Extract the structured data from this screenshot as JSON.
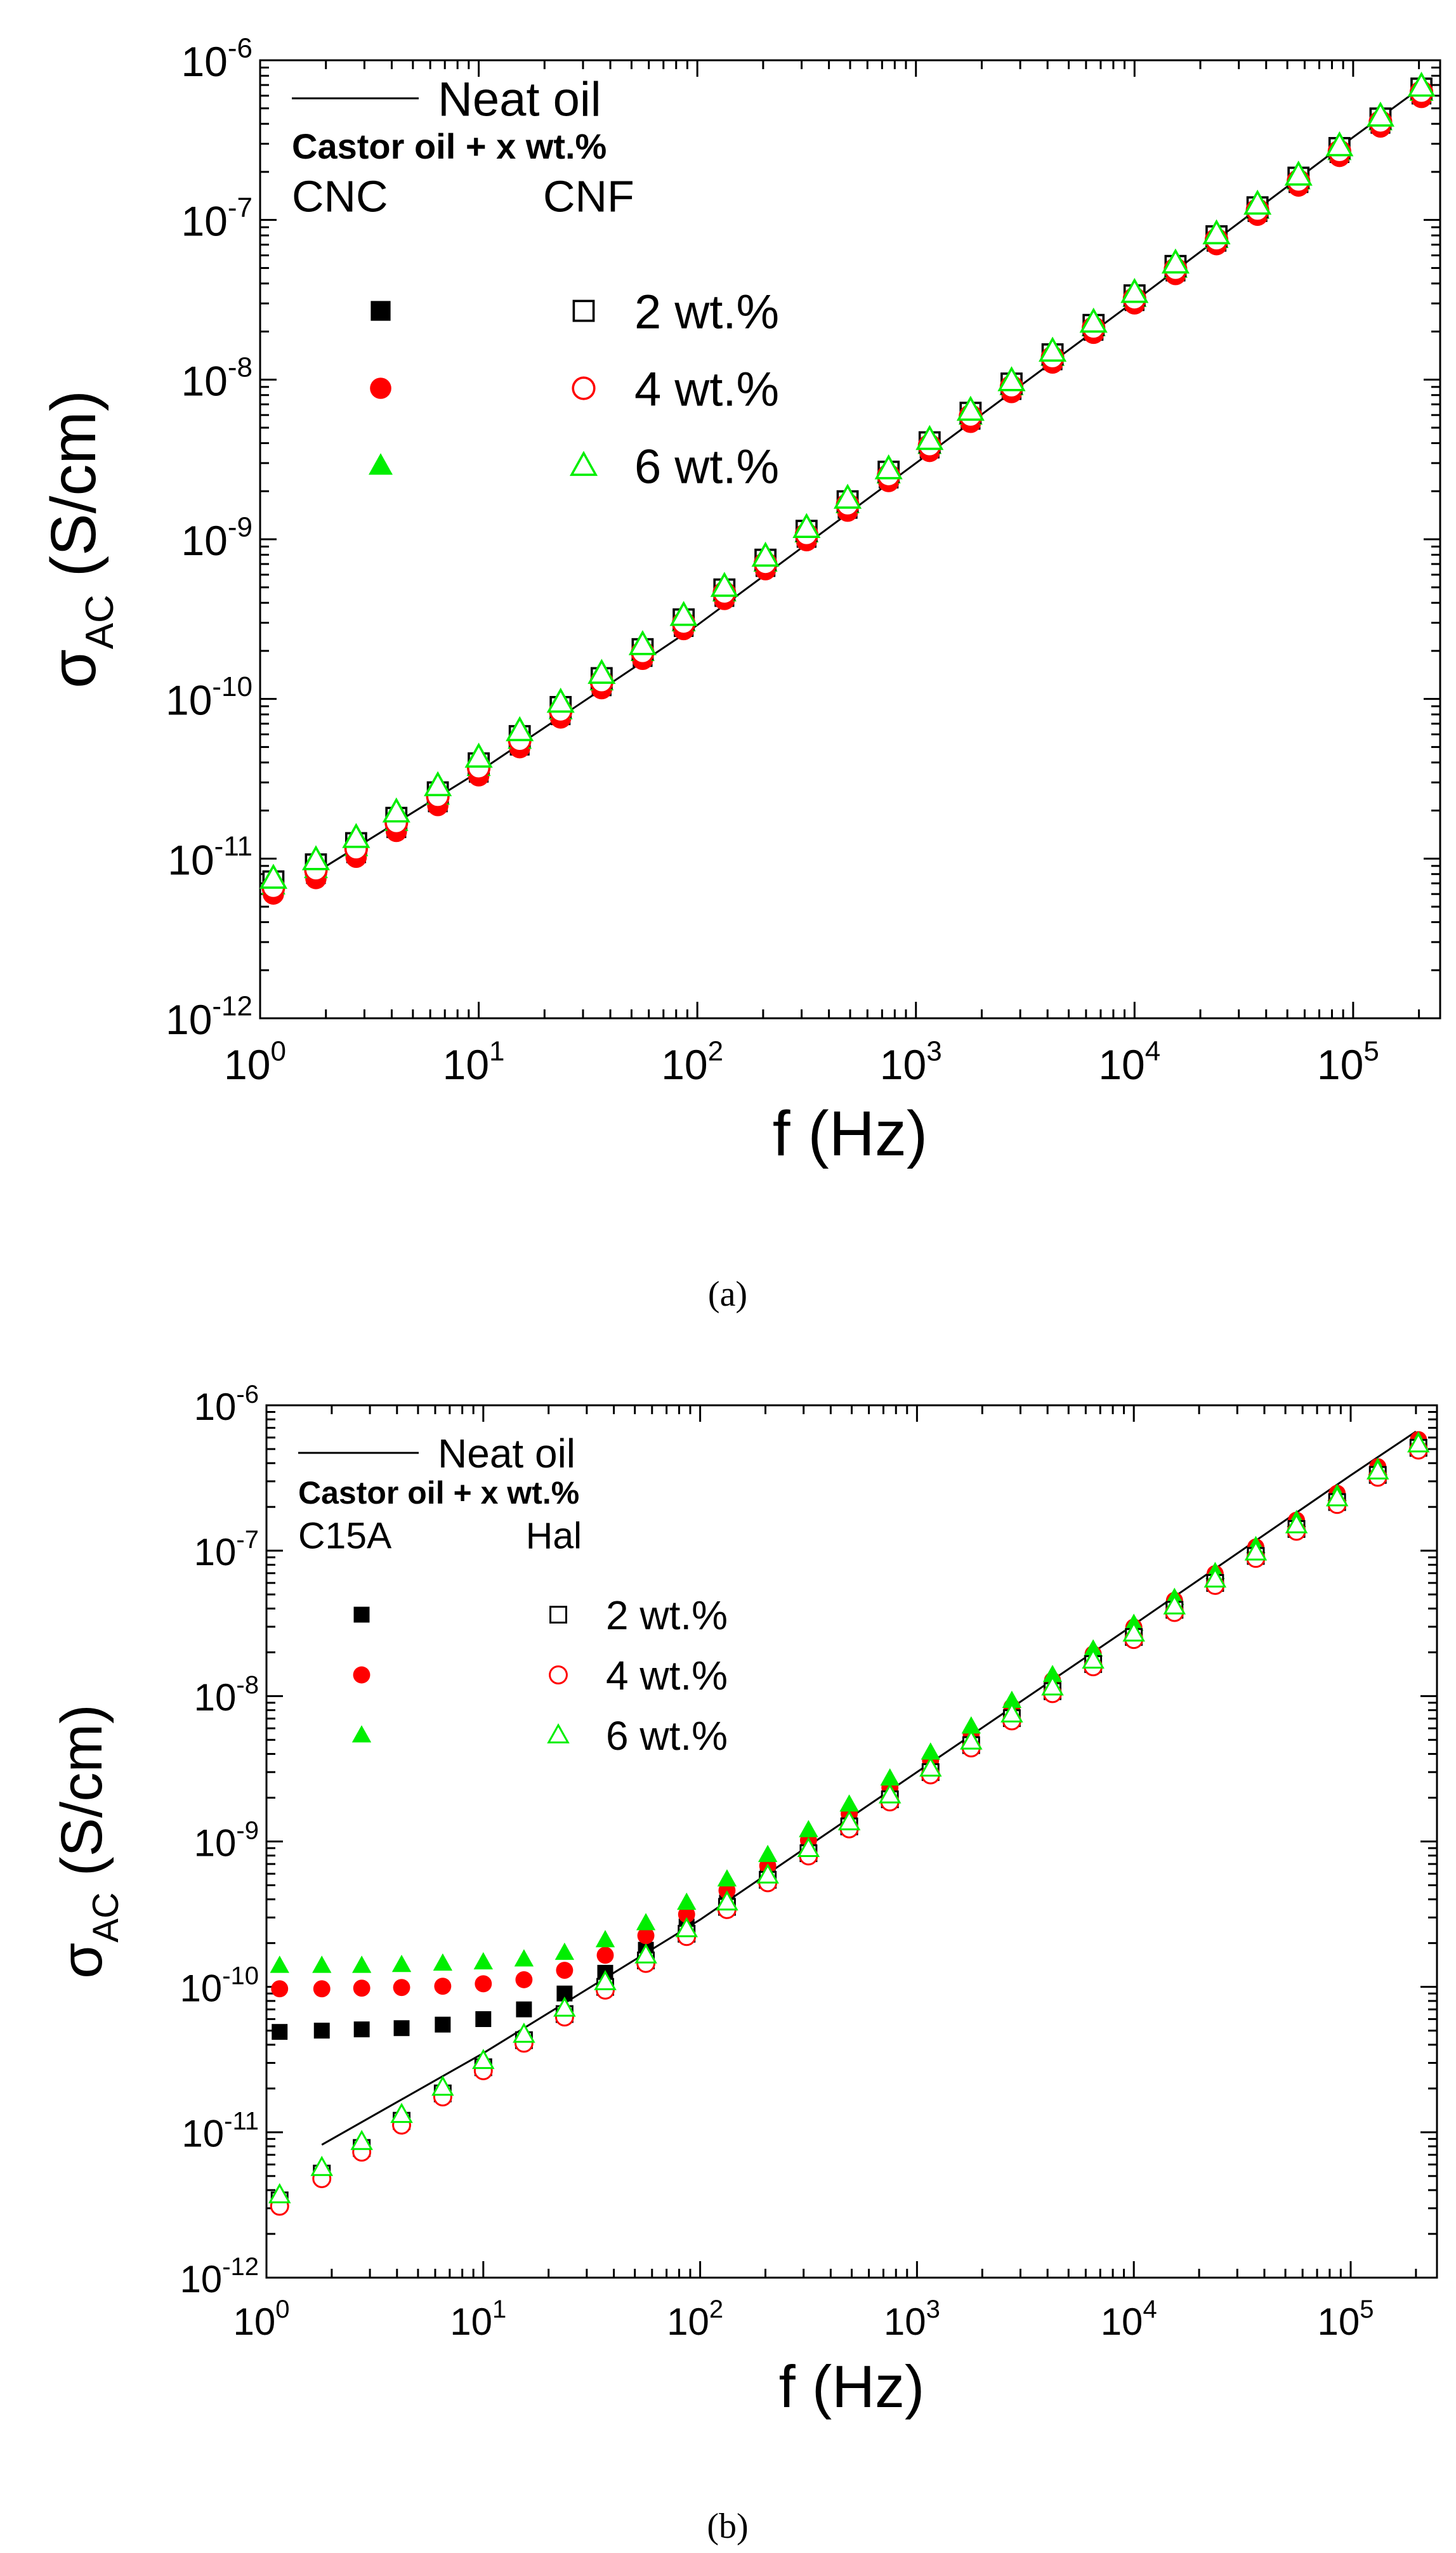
{
  "chart_data": [
    {
      "type": "scatter",
      "panel_label": "a",
      "xscale": "log",
      "yscale": "log",
      "xlim": [
        1,
        250000
      ],
      "ylim": [
        1e-12,
        1e-06
      ],
      "xlabel": "f (Hz)",
      "ylabel": "σAC (S/cm)",
      "ylabel_symbol": "σ",
      "ylabel_subscript": "AC",
      "ylabel_unit": "(S/cm)",
      "x_ticks": [
        {
          "base": "10",
          "exp": "0",
          "value": 1
        },
        {
          "base": "10",
          "exp": "1",
          "value": 10
        },
        {
          "base": "10",
          "exp": "2",
          "value": 100
        },
        {
          "base": "10",
          "exp": "3",
          "value": 1000
        },
        {
          "base": "10",
          "exp": "4",
          "value": 10000
        },
        {
          "base": "10",
          "exp": "5",
          "value": 100000
        }
      ],
      "y_ticks": [
        {
          "base": "10",
          "exp": "-12",
          "value": 1e-12
        },
        {
          "base": "10",
          "exp": "-11",
          "value": 1e-11
        },
        {
          "base": "10",
          "exp": "-10",
          "value": 1e-10
        },
        {
          "base": "10",
          "exp": "-9",
          "value": 1e-09
        },
        {
          "base": "10",
          "exp": "-8",
          "value": 1e-08
        },
        {
          "base": "10",
          "exp": "-7",
          "value": 1e-07
        },
        {
          "base": "10",
          "exp": "-6",
          "value": 1e-06
        }
      ],
      "legend": {
        "position": "top-left",
        "line_label": "Neat oil",
        "subtitle": "Castor oil + x wt.%",
        "col_filled": "CNC",
        "col_open": "CNF",
        "rows": [
          "2 wt.%",
          "4 wt.%",
          "6 wt.%"
        ]
      },
      "line": {
        "name": "Neat oil",
        "x": [
          1.8,
          10,
          100,
          1000,
          10000,
          100000,
          200000
        ],
        "y": [
          8.2e-12,
          3.5e-11,
          2.9e-10,
          3e-09,
          3.1e-08,
          3.3e-07,
          6.6e-07
        ]
      },
      "x": [
        1.15,
        1.8,
        2.75,
        4.2,
        6.5,
        10,
        15.4,
        23.7,
        36.5,
        56.2,
        86.6,
        133,
        205,
        316,
        487,
        750,
        1155,
        1778,
        2738,
        4217,
        6494,
        10000,
        15400,
        23714,
        36517,
        56234,
        86596,
        133352,
        205353
      ],
      "series": [
        {
          "name": "CNC 2 wt.%",
          "filled": true,
          "marker": "square",
          "color": "#000000",
          "y": [
            6.5e-12,
            8e-12,
            1.08e-11,
            1.55e-11,
            2.25e-11,
            3.45e-11,
            5.1e-11,
            7.9e-11,
            1.2e-10,
            1.83e-10,
            2.82e-10,
            4.35e-10,
            6.7e-10,
            1.02e-09,
            1.55e-09,
            2.4e-09,
            3.7e-09,
            5.6e-09,
            8.6e-09,
            1.32e-08,
            2.02e-08,
            3.1e-08,
            4.75e-08,
            7.3e-08,
            1.12e-07,
            1.7e-07,
            2.62e-07,
            4e-07,
            6.1e-07
          ]
        },
        {
          "name": "CNC 4 wt.%",
          "filled": true,
          "marker": "circle",
          "color": "#ff0000",
          "y": [
            6e-12,
            7.5e-12,
            1.02e-11,
            1.48e-11,
            2.15e-11,
            3.3e-11,
            4.95e-11,
            7.6e-11,
            1.16e-10,
            1.77e-10,
            2.72e-10,
            4.2e-10,
            6.45e-10,
            9.8e-10,
            1.5e-09,
            2.3e-09,
            3.55e-09,
            5.4e-09,
            8.3e-09,
            1.27e-08,
            1.95e-08,
            2.98e-08,
            4.55e-08,
            7e-08,
            1.07e-07,
            1.63e-07,
            2.5e-07,
            3.82e-07,
            5.85e-07
          ]
        },
        {
          "name": "CNC 6 wt.%",
          "filled": true,
          "marker": "triangle",
          "color": "#00ee00",
          "y": [
            6.8e-12,
            8.6e-12,
            1.18e-11,
            1.7e-11,
            2.48e-11,
            3.75e-11,
            5.55e-11,
            8.5e-11,
            1.29e-10,
            1.97e-10,
            3.02e-10,
            4.65e-10,
            7.15e-10,
            1.09e-09,
            1.66e-09,
            2.55e-09,
            3.9e-09,
            5.95e-09,
            9.1e-09,
            1.39e-08,
            2.13e-08,
            3.25e-08,
            4.95e-08,
            7.6e-08,
            1.16e-07,
            1.77e-07,
            2.7e-07,
            4.15e-07,
            6.35e-07
          ]
        },
        {
          "name": "CNF 2 wt.%",
          "filled": false,
          "marker": "square",
          "color": "#000000",
          "y": [
            7.2e-12,
            9.2e-12,
            1.25e-11,
            1.8e-11,
            2.6e-11,
            3.95e-11,
            5.85e-11,
            8.9e-11,
            1.35e-10,
            2.05e-10,
            3.15e-10,
            4.85e-10,
            7.45e-10,
            1.13e-09,
            1.73e-09,
            2.65e-09,
            4.05e-09,
            6.2e-09,
            9.45e-09,
            1.44e-08,
            2.2e-08,
            3.37e-08,
            5.15e-08,
            7.9e-08,
            1.2e-07,
            1.84e-07,
            2.82e-07,
            4.32e-07,
            6.65e-07
          ]
        },
        {
          "name": "CNF 4 wt.%",
          "filled": false,
          "marker": "circle",
          "color": "#ff0000",
          "y": [
            6.6e-12,
            8.5e-12,
            1.15e-11,
            1.68e-11,
            2.45e-11,
            3.7e-11,
            5.5e-11,
            8.4e-11,
            1.28e-10,
            1.95e-10,
            2.98e-10,
            4.6e-10,
            7.05e-10,
            1.07e-09,
            1.64e-09,
            2.5e-09,
            3.85e-09,
            5.9e-09,
            9e-09,
            1.37e-08,
            2.1e-08,
            3.2e-08,
            4.9e-08,
            7.5e-08,
            1.15e-07,
            1.75e-07,
            2.68e-07,
            4.1e-07,
            6.3e-07
          ]
        },
        {
          "name": "CNF 6 wt.%",
          "filled": false,
          "marker": "triangle",
          "color": "#00ee00",
          "y": [
            7.5e-12,
            9.8e-12,
            1.35e-11,
            1.95e-11,
            2.85e-11,
            4.3e-11,
            6.3e-11,
            9.5e-11,
            1.44e-10,
            2.18e-10,
            3.32e-10,
            5.05e-10,
            7.8e-10,
            1.18e-09,
            1.8e-09,
            2.75e-09,
            4.2e-09,
            6.4e-09,
            9.8e-09,
            1.5e-08,
            2.28e-08,
            3.5e-08,
            5.35e-08,
            8.15e-08,
            1.25e-07,
            1.9e-07,
            2.9e-07,
            4.45e-07,
            6.85e-07
          ]
        }
      ]
    },
    {
      "type": "scatter",
      "panel_label": "b",
      "xscale": "log",
      "yscale": "log",
      "xlim": [
        1,
        250000
      ],
      "ylim": [
        1e-12,
        1e-06
      ],
      "xlabel": "f (Hz)",
      "ylabel": "σAC (S/cm)",
      "ylabel_symbol": "σ",
      "ylabel_subscript": "AC",
      "ylabel_unit": "(S/cm)",
      "x_ticks": [
        {
          "base": "10",
          "exp": "0",
          "value": 1
        },
        {
          "base": "10",
          "exp": "1",
          "value": 10
        },
        {
          "base": "10",
          "exp": "2",
          "value": 100
        },
        {
          "base": "10",
          "exp": "3",
          "value": 1000
        },
        {
          "base": "10",
          "exp": "4",
          "value": 10000
        },
        {
          "base": "10",
          "exp": "5",
          "value": 100000
        }
      ],
      "y_ticks": [
        {
          "base": "10",
          "exp": "-12",
          "value": 1e-12
        },
        {
          "base": "10",
          "exp": "-11",
          "value": 1e-11
        },
        {
          "base": "10",
          "exp": "-10",
          "value": 1e-10
        },
        {
          "base": "10",
          "exp": "-9",
          "value": 1e-09
        },
        {
          "base": "10",
          "exp": "-8",
          "value": 1e-08
        },
        {
          "base": "10",
          "exp": "-7",
          "value": 1e-07
        },
        {
          "base": "10",
          "exp": "-6",
          "value": 1e-06
        }
      ],
      "legend": {
        "position": "top-left",
        "line_label": "Neat oil",
        "subtitle": "Castor oil + x wt.%",
        "col_filled": "C15A",
        "col_open": "Hal",
        "rows": [
          "2 wt.%",
          "4 wt.%",
          "6 wt.%"
        ]
      },
      "line": {
        "name": "Neat oil",
        "x": [
          1.8,
          10,
          100,
          1000,
          10000,
          100000,
          200000
        ],
        "y": [
          8.2e-12,
          3.5e-11,
          2.9e-10,
          3e-09,
          3.1e-08,
          3.3e-07,
          6.6e-07
        ]
      },
      "x": [
        1.15,
        1.8,
        2.75,
        4.2,
        6.5,
        10,
        15.4,
        23.7,
        36.5,
        56.2,
        86.6,
        133,
        205,
        316,
        487,
        750,
        1155,
        1778,
        2738,
        4217,
        6494,
        10000,
        15400,
        23714,
        36517,
        56234,
        86596,
        133352,
        205353
      ],
      "series": [
        {
          "name": "C15A 2 wt.%",
          "filled": true,
          "marker": "square",
          "color": "#000000",
          "y": [
            4.9e-11,
            5e-11,
            5.1e-11,
            5.2e-11,
            5.5e-11,
            6e-11,
            7e-11,
            9e-11,
            1.25e-10,
            1.8e-10,
            2.6e-10,
            3.8e-10,
            5.7e-10,
            8.7e-10,
            1.32e-09,
            2.05e-09,
            3.15e-09,
            4.8e-09,
            7.4e-09,
            1.14e-08,
            1.75e-08,
            2.7e-08,
            4.15e-08,
            6.4e-08,
            9.8e-08,
            1.5e-07,
            2.3e-07,
            3.5e-07,
            5.4e-07
          ]
        },
        {
          "name": "C15A 4 wt.%",
          "filled": true,
          "marker": "circle",
          "color": "#ff0000",
          "y": [
            9.7e-11,
            9.7e-11,
            9.8e-11,
            9.9e-11,
            1.01e-10,
            1.05e-10,
            1.12e-10,
            1.3e-10,
            1.65e-10,
            2.25e-10,
            3.15e-10,
            4.6e-10,
            6.8e-10,
            1.02e-09,
            1.55e-09,
            2.35e-09,
            3.6e-09,
            5.5e-09,
            8.4e-09,
            1.28e-08,
            1.95e-08,
            2.98e-08,
            4.55e-08,
            6.95e-08,
            1.06e-07,
            1.62e-07,
            2.48e-07,
            3.78e-07,
            5.8e-07
          ]
        },
        {
          "name": "C15A 6 wt.%",
          "filled": true,
          "marker": "triangle",
          "color": "#00ee00",
          "y": [
            1.4e-10,
            1.4e-10,
            1.4e-10,
            1.42e-10,
            1.45e-10,
            1.48e-10,
            1.55e-10,
            1.72e-10,
            2.1e-10,
            2.75e-10,
            3.8e-10,
            5.5e-10,
            8.1e-10,
            1.2e-09,
            1.8e-09,
            2.72e-09,
            4.1e-09,
            6.2e-09,
            9.3e-09,
            1.4e-08,
            2.1e-08,
            3.15e-08,
            4.75e-08,
            7.15e-08,
            1.08e-07,
            1.63e-07,
            2.46e-07,
            3.72e-07,
            5.65e-07
          ]
        },
        {
          "name": "Hal 2 wt.%",
          "filled": false,
          "marker": "square",
          "color": "#000000",
          "y": [
            3.4e-12,
            5.2e-12,
            7.8e-12,
            1.2e-11,
            1.85e-11,
            2.8e-11,
            4.3e-11,
            6.5e-11,
            1e-10,
            1.52e-10,
            2.32e-10,
            3.55e-10,
            5.45e-10,
            8.3e-10,
            1.27e-09,
            1.95e-09,
            3e-09,
            4.6e-09,
            7.05e-09,
            1.08e-08,
            1.66e-08,
            2.55e-08,
            3.92e-08,
            6e-08,
            9.2e-08,
            1.41e-07,
            2.16e-07,
            3.32e-07,
            5.1e-07
          ]
        },
        {
          "name": "Hal 4 wt.%",
          "filled": false,
          "marker": "circle",
          "color": "#ff0000",
          "y": [
            3.1e-12,
            4.8e-12,
            7.3e-12,
            1.12e-11,
            1.75e-11,
            2.65e-11,
            4.1e-11,
            6.2e-11,
            9.5e-11,
            1.45e-10,
            2.22e-10,
            3.4e-10,
            5.2e-10,
            7.95e-10,
            1.22e-09,
            1.87e-09,
            2.87e-09,
            4.4e-09,
            6.75e-09,
            1.04e-08,
            1.59e-08,
            2.45e-08,
            3.76e-08,
            5.77e-08,
            8.85e-08,
            1.36e-07,
            2.08e-07,
            3.2e-07,
            4.92e-07
          ]
        },
        {
          "name": "Hal 6 wt.%",
          "filled": false,
          "marker": "triangle",
          "color": "#00ee00",
          "y": [
            3.7e-12,
            5.7e-12,
            8.6e-12,
            1.32e-11,
            2.03e-11,
            3.1e-11,
            4.7e-11,
            7.1e-11,
            1.08e-10,
            1.65e-10,
            2.5e-10,
            3.82e-10,
            5.85e-10,
            8.9e-10,
            1.36e-09,
            2.08e-09,
            3.18e-09,
            4.88e-09,
            7.5e-09,
            1.15e-08,
            1.76e-08,
            2.7e-08,
            4.15e-08,
            6.35e-08,
            9.75e-08,
            1.5e-07,
            2.3e-07,
            3.52e-07,
            5.4e-07
          ]
        }
      ]
    }
  ],
  "captions": [
    "(a)",
    "(b)"
  ]
}
